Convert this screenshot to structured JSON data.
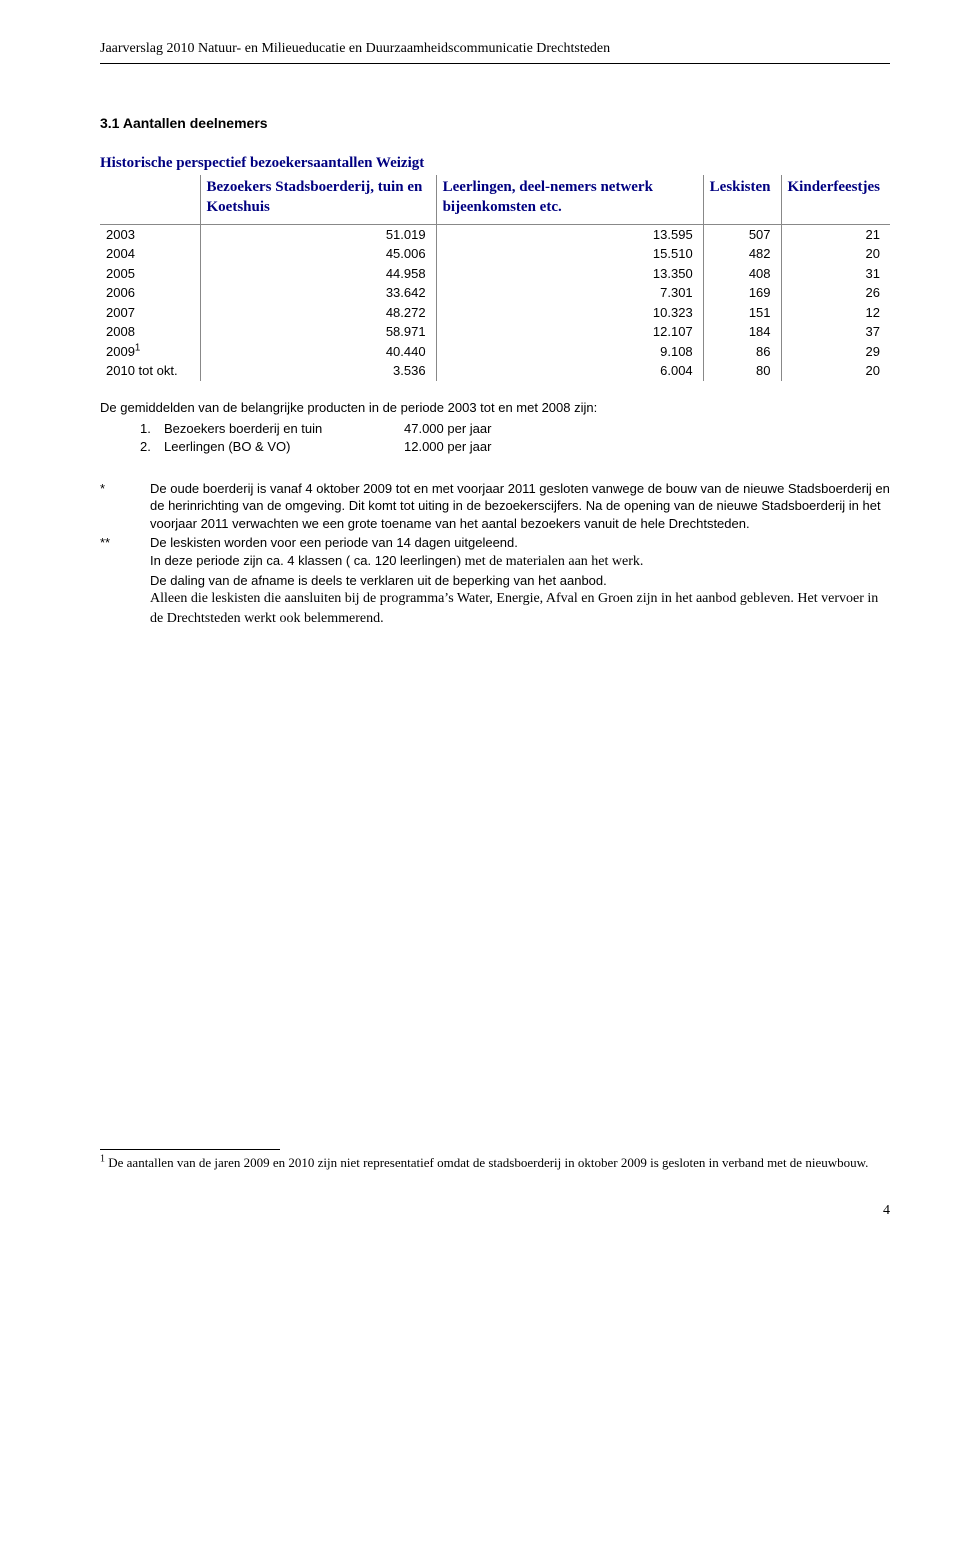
{
  "header": "Jaarverslag 2010 Natuur- en Milieueducatie en Duurzaamheidscommunicatie Drechtsteden",
  "section_title": "3.1 Aantallen deelnemers",
  "table": {
    "title": "Historische perspectief bezoekersaantallen Weizigt",
    "columns": [
      "",
      "Bezoekers Stadsboerderij, tuin en Koetshuis",
      "Leerlingen, deel-nemers netwerk bijeenkomsten etc.",
      "Leskisten",
      "Kinderfeestjes"
    ],
    "rows": [
      {
        "year": "2003",
        "c1": "51.019",
        "c2": "13.595",
        "c3": "507",
        "c4": "21"
      },
      {
        "year": "2004",
        "c1": "45.006",
        "c2": "15.510",
        "c3": "482",
        "c4": "20"
      },
      {
        "year": "2005",
        "c1": "44.958",
        "c2": "13.350",
        "c3": "408",
        "c4": "31"
      },
      {
        "year": "2006",
        "c1": "33.642",
        "c2": "7.301",
        "c3": "169",
        "c4": "26"
      },
      {
        "year": "2007",
        "c1": "48.272",
        "c2": "10.323",
        "c3": "151",
        "c4": "12"
      },
      {
        "year": "2008",
        "c1": "58.971",
        "c2": "12.107",
        "c3": "184",
        "c4": "37"
      },
      {
        "year": "2009¹",
        "c1": "40.440",
        "c2": "9.108",
        "c3": "86",
        "c4": "29"
      },
      {
        "year": "2010 tot okt.",
        "c1": "3.536",
        "c2": "6.004",
        "c3": "80",
        "c4": "20"
      }
    ],
    "header_color": "#000080",
    "border_color": "#888888"
  },
  "averages": {
    "intro": "De gemiddelden van de belangrijke producten in de periode 2003 tot en met 2008 zijn:",
    "items": [
      {
        "n": "1.",
        "label": "Bezoekers boerderij en tuin",
        "val": "47.000 per jaar"
      },
      {
        "n": "2.",
        "label": "Leerlingen (BO & VO)",
        "val": "12.000 per jaar"
      }
    ]
  },
  "notes": [
    {
      "marker": "*",
      "text": "De oude boerderij is vanaf 4 oktober 2009 tot en met voorjaar 2011 gesloten vanwege de bouw van de nieuwe Stadsboerderij en de herinrichting van de omgeving. Dit komt tot uiting in de bezoekerscijfers. Na de opening van de nieuwe Stadsboerderij in het voorjaar 2011 verwachten we een grote toename van het aantal bezoekers vanuit de hele Drechtsteden."
    },
    {
      "marker": "**",
      "text": "De leskisten worden voor een periode van 14 dagen uitgeleend.\nIn deze periode zijn ca. 4 klassen ( ca. 120 leerlingen) met de materialen aan het werk.\nDe daling van de afname is deels te verklaren uit de beperking van het aanbod.\nAlleen die leskisten die aansluiten bij de programma's Water, Energie, Afval en Groen zijn in het aanbod gebleven. Het vervoer in de Drechtsteden werkt ook belemmerend.",
      "mixed_font_part": "met de materialen aan het werk."
    }
  ],
  "footnote": {
    "num": "1",
    "text": "De aantallen van de jaren 2009 en 2010 zijn niet representatief omdat de stadsboerderij in oktober 2009 is gesloten in verband met de nieuwbouw."
  },
  "page_number": "4"
}
